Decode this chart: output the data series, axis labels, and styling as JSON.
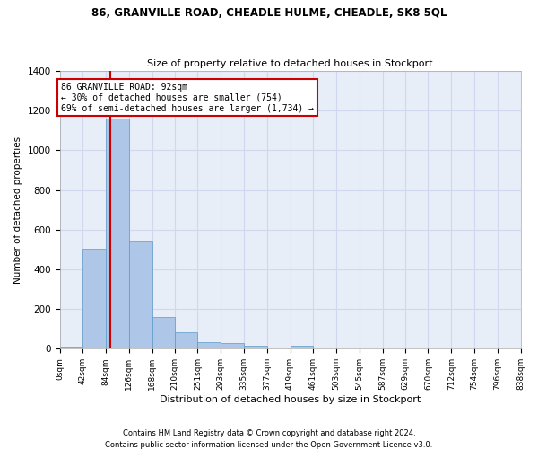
{
  "title1": "86, GRANVILLE ROAD, CHEADLE HULME, CHEADLE, SK8 5QL",
  "title2": "Size of property relative to detached houses in Stockport",
  "xlabel": "Distribution of detached houses by size in Stockport",
  "ylabel": "Number of detached properties",
  "footer1": "Contains HM Land Registry data © Crown copyright and database right 2024.",
  "footer2": "Contains public sector information licensed under the Open Government Licence v3.0.",
  "annotation_line1": "86 GRANVILLE ROAD: 92sqm",
  "annotation_line2": "← 30% of detached houses are smaller (754)",
  "annotation_line3": "69% of semi-detached houses are larger (1,734) →",
  "property_size": 92,
  "bar_color": "#aec6e8",
  "bar_edge_color": "#5a9ac8",
  "vline_color": "#cc0000",
  "annotation_box_color": "#cc0000",
  "grid_color": "#d0d8f0",
  "background_color": "#e8eef8",
  "bin_edges": [
    0,
    42,
    84,
    126,
    168,
    210,
    251,
    293,
    335,
    377,
    419,
    461,
    503,
    545,
    587,
    629,
    670,
    712,
    754,
    796,
    838
  ],
  "bin_labels": [
    "0sqm",
    "42sqm",
    "84sqm",
    "126sqm",
    "168sqm",
    "210sqm",
    "251sqm",
    "293sqm",
    "335sqm",
    "377sqm",
    "419sqm",
    "461sqm",
    "503sqm",
    "545sqm",
    "587sqm",
    "629sqm",
    "670sqm",
    "712sqm",
    "754sqm",
    "796sqm",
    "838sqm"
  ],
  "counts": [
    10,
    505,
    1160,
    547,
    160,
    82,
    33,
    27,
    15,
    6,
    14,
    0,
    0,
    0,
    0,
    0,
    0,
    0,
    0,
    0
  ],
  "ylim": [
    0,
    1400
  ],
  "yticks": [
    0,
    200,
    400,
    600,
    800,
    1000,
    1200,
    1400
  ]
}
